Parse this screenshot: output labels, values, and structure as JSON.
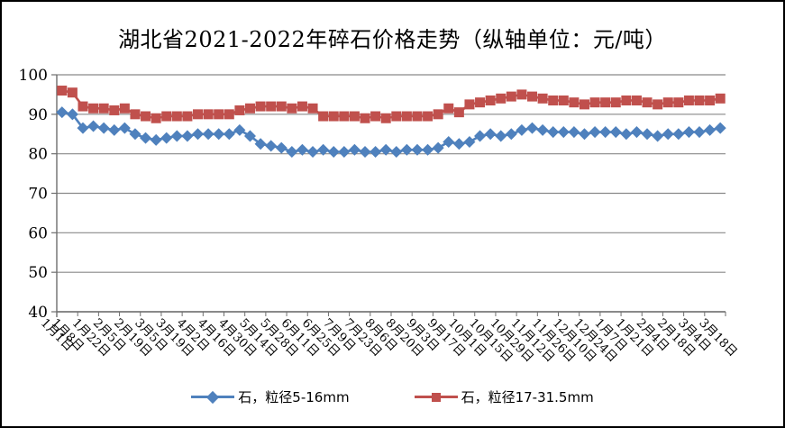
{
  "title": "湖北省2021-2022年碎石价格走势（纵轴单位：元/吨）",
  "colors": {
    "background": "#ffffff",
    "frame_border": "#000000",
    "gridline": "#898989",
    "axis": "#6e6e6e",
    "text": "#000000",
    "series_blue": "#4f81bd",
    "series_red": "#c0504d"
  },
  "chart_data": {
    "type": "line",
    "title": "湖北省2021-2022年碎石价格走势（纵轴单位：元/吨）",
    "ylabel": "元/吨",
    "xlabel": "",
    "ylim": [
      40,
      100
    ],
    "yticks": [
      40,
      50,
      60,
      70,
      80,
      90,
      100
    ],
    "grid": "horizontal",
    "legend_position": "bottom",
    "n_points": 64,
    "x_labels": [
      "1月1日",
      "1月8日",
      "1月22日",
      "2月5日",
      "2月19日",
      "3月5日",
      "3月19日",
      "4月2日",
      "4月16日",
      "4月30日",
      "5月14日",
      "5月28日",
      "6月11日",
      "6月25日",
      "7月9日",
      "7月23日",
      "8月6日",
      "8月20日",
      "9月3日",
      "9月17日",
      "10月1日",
      "10月15日",
      "10月29日",
      "11月12日",
      "11月26日",
      "12月10日",
      "12月24日",
      "1月7日",
      "1月21日",
      "2月4日",
      "2月18日",
      "3月4日",
      "3月18日"
    ],
    "x_label_slots": [
      0,
      1,
      3,
      5,
      7,
      9,
      11,
      13,
      15,
      17,
      19,
      21,
      23,
      25,
      27,
      29,
      31,
      33,
      35,
      37,
      39,
      41,
      43,
      45,
      47,
      49,
      51,
      53,
      55,
      57,
      59,
      61,
      63
    ],
    "series": [
      {
        "name": "石，粒径5-16mm",
        "marker": "diamond",
        "color": "#4f81bd",
        "values": [
          90.5,
          90,
          86.5,
          87,
          86.5,
          86,
          86.5,
          85,
          84,
          83.5,
          84,
          84.5,
          84.5,
          85,
          85,
          85,
          85,
          86,
          84.5,
          82.5,
          82,
          81.5,
          80.5,
          81,
          80.5,
          81,
          80.5,
          80.5,
          81,
          80.5,
          80.5,
          81,
          80.5,
          81,
          81,
          81,
          81.5,
          83,
          82.5,
          83,
          84.5,
          85,
          84.5,
          85,
          86,
          86.5,
          86,
          85.5,
          85.5,
          85.5,
          85,
          85.5,
          85.5,
          85.5,
          85,
          85.5,
          85,
          84.5,
          85,
          85,
          85.5,
          85.5,
          86,
          86.5
        ]
      },
      {
        "name": "石，粒径17-31.5mm",
        "marker": "square",
        "color": "#c0504d",
        "values": [
          96,
          95.5,
          92,
          91.5,
          91.5,
          91,
          91.5,
          90,
          89.5,
          89,
          89.5,
          89.5,
          89.5,
          90,
          90,
          90,
          90,
          91,
          91.5,
          92,
          92,
          92,
          91.5,
          92,
          91.5,
          89.5,
          89.5,
          89.5,
          89.5,
          89,
          89.5,
          89,
          89.5,
          89.5,
          89.5,
          89.5,
          90,
          91.5,
          90.5,
          92.5,
          93,
          93.5,
          94,
          94.5,
          95,
          94.5,
          94,
          93.5,
          93.5,
          93,
          92.5,
          93,
          93,
          93,
          93.5,
          93.5,
          93,
          92.5,
          93,
          93,
          93.5,
          93.5,
          93.5,
          94
        ]
      }
    ]
  }
}
